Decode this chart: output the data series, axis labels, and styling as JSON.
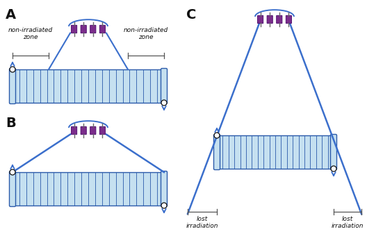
{
  "blue": "#3B6FCC",
  "light_blue": "#C5E0F0",
  "coil_edge": "#2A5AAA",
  "purple": "#7B2D8B",
  "gray": "#888888",
  "black": "#111111",
  "white": "#FFFFFF",
  "bg": "#FFFFFF",
  "panel_A_label": "A",
  "panel_B_label": "B",
  "panel_C_label": "C",
  "text_non_irradiated": "non-irradiated\nzone",
  "text_lost_irradiation": "lost\nirradiation"
}
